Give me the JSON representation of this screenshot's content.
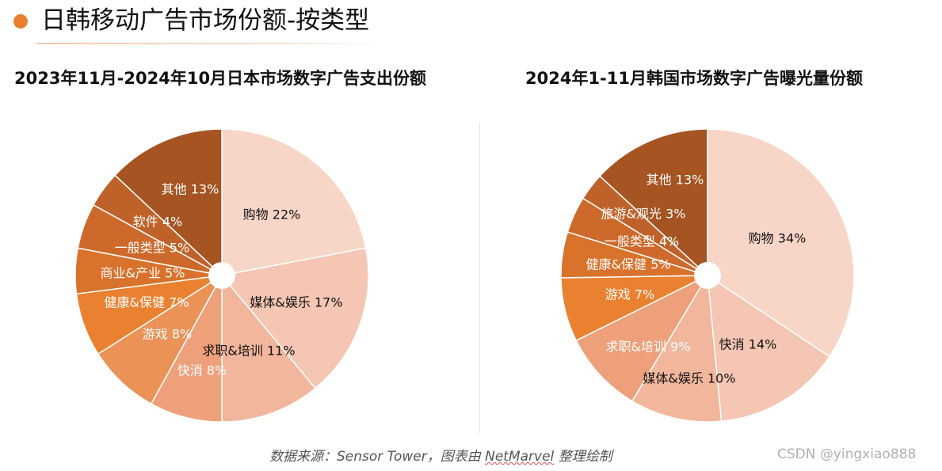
{
  "page": {
    "title": "日韩移动广告市场份额-按类型",
    "accent_color": "#ea7f30"
  },
  "footer": {
    "source_prefix": "数据来源：Sensor Tower，图表由",
    "source_brand": "NetMarvel",
    "source_suffix": "整理绘制",
    "watermark": "CSDN @yingxiao888"
  },
  "chart_data": [
    {
      "type": "pie",
      "title": "2023年11月-2024年10月日本市场数字广告支出份额",
      "slices": [
        {
          "label": "购物",
          "value": 22,
          "pct_text": "22%",
          "color": "#f7d6c8",
          "text_color": "#111111"
        },
        {
          "label": "媒体&娱乐",
          "value": 17,
          "pct_text": "17%",
          "color": "#f4c6b3",
          "text_color": "#111111"
        },
        {
          "label": "求职&培训",
          "value": 11,
          "pct_text": "11%",
          "color": "#f1b69c",
          "text_color": "#111111"
        },
        {
          "label": "快消",
          "value": 8,
          "pct_text": "8%",
          "color": "#eda07a",
          "text_color": "#ffffff"
        },
        {
          "label": "游戏",
          "value": 8,
          "pct_text": "8%",
          "color": "#eb9257",
          "text_color": "#ffffff"
        },
        {
          "label": "健康&保健",
          "value": 7,
          "pct_text": "7%",
          "color": "#e98130",
          "text_color": "#ffffff"
        },
        {
          "label": "商业&产业",
          "value": 5,
          "pct_text": "5%",
          "color": "#d9722b",
          "text_color": "#ffffff"
        },
        {
          "label": "一般类型",
          "value": 5,
          "pct_text": "5%",
          "color": "#cd6a2b",
          "text_color": "#ffffff"
        },
        {
          "label": "软件",
          "value": 4,
          "pct_text": "4%",
          "color": "#bf622a",
          "text_color": "#ffffff"
        },
        {
          "label": "其他",
          "value": 13,
          "pct_text": "13%",
          "color": "#a55422",
          "text_color": "#ffffff"
        }
      ]
    },
    {
      "type": "pie",
      "title": "2024年1-11月韩国市场数字广告曝光量份额",
      "slices": [
        {
          "label": "购物",
          "value": 34,
          "pct_text": "34%",
          "color": "#f7d6c8",
          "text_color": "#111111"
        },
        {
          "label": "快消",
          "value": 14,
          "pct_text": "14%",
          "color": "#f4c6b3",
          "text_color": "#111111"
        },
        {
          "label": "媒体&娱乐",
          "value": 10,
          "pct_text": "10%",
          "color": "#f1b69c",
          "text_color": "#111111"
        },
        {
          "label": "求职&培训",
          "value": 9,
          "pct_text": "9%",
          "color": "#eda07a",
          "text_color": "#ffffff"
        },
        {
          "label": "游戏",
          "value": 7,
          "pct_text": "7%",
          "color": "#e98130",
          "text_color": "#ffffff"
        },
        {
          "label": "健康&保健",
          "value": 5,
          "pct_text": "5%",
          "color": "#d9722b",
          "text_color": "#ffffff"
        },
        {
          "label": "一般类型",
          "value": 4,
          "pct_text": "4%",
          "color": "#cd6a2b",
          "text_color": "#ffffff"
        },
        {
          "label": "旅游&观光",
          "value": 3,
          "pct_text": "3%",
          "color": "#bf622a",
          "text_color": "#ffffff"
        },
        {
          "label": "其他",
          "value": 13,
          "pct_text": "13%",
          "color": "#a55422",
          "text_color": "#ffffff"
        }
      ]
    }
  ]
}
